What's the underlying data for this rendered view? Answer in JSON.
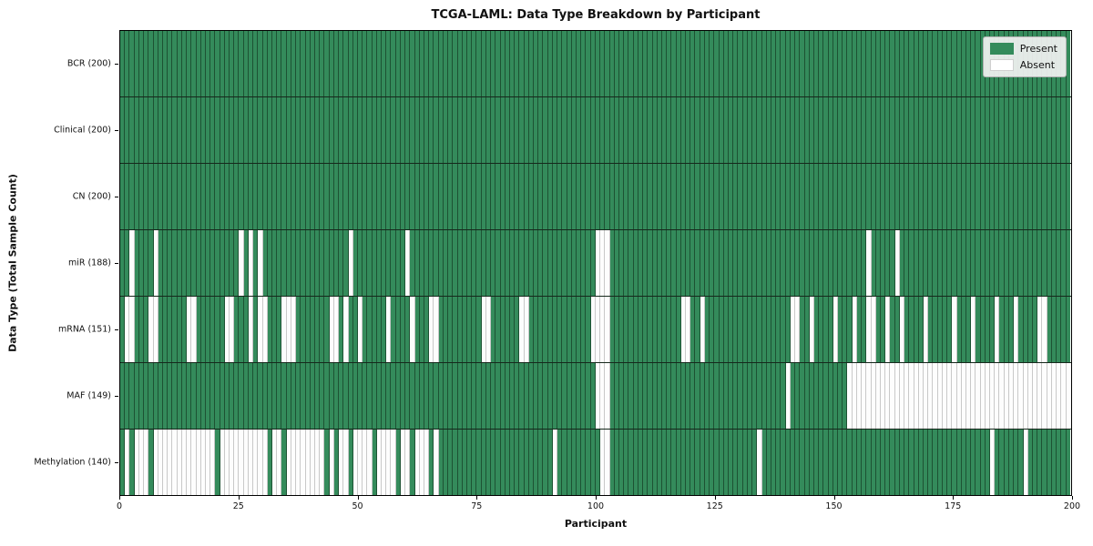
{
  "title": "TCGA-LAML: Data Type Breakdown by Participant",
  "axes": {
    "x_label": "Participant",
    "y_label": "Data Type (Total Sample Count)",
    "x_ticks": [
      0,
      25,
      50,
      75,
      100,
      125,
      150,
      175,
      200
    ],
    "x_range": [
      0,
      200
    ]
  },
  "legend": {
    "items": [
      {
        "label": "Present",
        "color": "#348b5b"
      },
      {
        "label": "Absent",
        "color": "#ffffff"
      }
    ]
  },
  "colors": {
    "present": "#348b5b",
    "absent": "#fdfdfd",
    "present_edge": "#1d5233",
    "absent_edge": "#c9c9c9",
    "row_separator": "#16281c",
    "plot_border": "#000000",
    "legend_bg": "#f2f2f2"
  },
  "chart_data": {
    "type": "heatmap",
    "title": "TCGA-LAML: Data Type Breakdown by Participant",
    "xlabel": "Participant",
    "ylabel": "Data Type (Total Sample Count)",
    "n_participants": 200,
    "cell_states": [
      "present",
      "absent"
    ],
    "rows": [
      {
        "label": "BCR",
        "present_count": 200,
        "absent_indices": []
      },
      {
        "label": "Clinical",
        "present_count": 200,
        "absent_indices": []
      },
      {
        "label": "CN",
        "present_count": 200,
        "absent_indices": []
      },
      {
        "label": "miR",
        "present_count": 188,
        "absent_indices": [
          2,
          7,
          25,
          27,
          29,
          48,
          60,
          100,
          101,
          102,
          157,
          163
        ]
      },
      {
        "label": "mRNA",
        "present_count": 151,
        "absent_indices": [
          1,
          2,
          6,
          7,
          14,
          15,
          22,
          23,
          27,
          29,
          30,
          34,
          35,
          36,
          44,
          45,
          47,
          50,
          56,
          61,
          65,
          66,
          76,
          77,
          84,
          85,
          99,
          100,
          101,
          102,
          118,
          119,
          122,
          141,
          142,
          145,
          150,
          154,
          157,
          158,
          161,
          164,
          169,
          175,
          179,
          184,
          188,
          193,
          194
        ]
      },
      {
        "label": "MAF",
        "present_count": 149,
        "absent_indices": [
          100,
          101,
          102,
          140,
          153,
          154,
          155,
          156,
          157,
          158,
          159,
          160,
          161,
          162,
          163,
          164,
          165,
          166,
          167,
          168,
          169,
          170,
          171,
          172,
          173,
          174,
          175,
          176,
          177,
          178,
          179,
          180,
          181,
          182,
          183,
          184,
          185,
          186,
          187,
          188,
          189,
          190,
          191,
          192,
          193,
          194,
          195,
          196,
          197,
          198,
          199
        ]
      },
      {
        "label": "Methylation",
        "present_count": 140,
        "absent_indices": [
          1,
          3,
          4,
          5,
          7,
          8,
          9,
          10,
          11,
          12,
          13,
          14,
          15,
          16,
          17,
          18,
          19,
          21,
          22,
          23,
          24,
          25,
          26,
          27,
          28,
          29,
          30,
          32,
          33,
          35,
          36,
          37,
          38,
          39,
          40,
          41,
          42,
          44,
          46,
          47,
          49,
          50,
          51,
          52,
          54,
          55,
          56,
          57,
          59,
          60,
          62,
          63,
          64,
          66,
          91,
          101,
          102,
          134,
          183,
          190
        ]
      }
    ]
  }
}
